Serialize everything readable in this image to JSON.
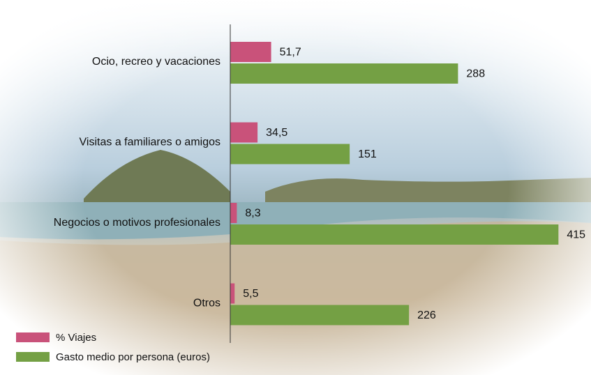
{
  "chart_data": {
    "type": "bar",
    "orientation": "horizontal",
    "categories": [
      "Ocio, recreo y vacaciones",
      "Visitas a familiares o amigos",
      "Negocios o motivos profesionales",
      "Otros"
    ],
    "series": [
      {
        "name": "% Viajes",
        "color": "#c9527a",
        "values": [
          51.7,
          34.5,
          8.3,
          5.5
        ],
        "value_labels": [
          "51,7",
          "34,5",
          "8,3",
          "5,5"
        ]
      },
      {
        "name": "Gasto medio por persona (euros)",
        "color": "#74a044",
        "values": [
          288,
          151,
          415,
          226
        ]
      }
    ],
    "xlim": [
      0,
      450
    ],
    "legend": "bottom-left"
  }
}
